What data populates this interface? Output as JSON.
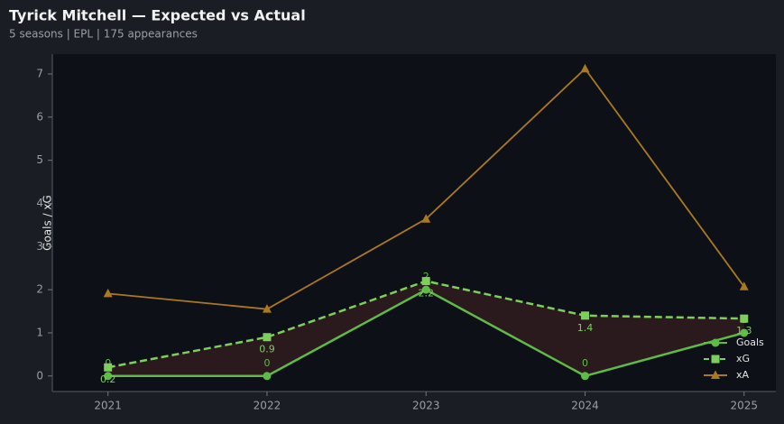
{
  "chart_data": {
    "type": "line",
    "title": "Tyrick Mitchell — Expected vs Actual",
    "subtitle": "5 seasons | EPL | 175 appearances",
    "y_label": "Goals / xG",
    "x": [
      2021,
      2022,
      2023,
      2024,
      2025
    ],
    "xlim": [
      2020.65,
      2025.2
    ],
    "xticks": [
      2021,
      2022,
      2023,
      2024,
      2025
    ],
    "ylim": [
      -0.36,
      7.46
    ],
    "yticks": [
      0,
      1,
      2,
      3,
      4,
      5,
      6,
      7
    ],
    "grid": false,
    "legend": "lower right",
    "series": [
      {
        "name": "Goals",
        "color": "#5dbb46",
        "marker": "circle",
        "linestyle": "solid",
        "values": [
          0,
          0,
          2,
          0,
          1
        ]
      },
      {
        "name": "xG",
        "color": "#7ccf5c",
        "marker": "square",
        "linestyle": "dashed",
        "values": [
          0.2,
          0.9,
          2.2,
          1.4,
          1.33
        ],
        "value_labels": [
          "0.2",
          "0.9",
          "2.2",
          "1.4",
          "1.3"
        ]
      },
      {
        "name": "xA",
        "color": "#a9791f",
        "marker": "triangle",
        "linestyle": "solid",
        "values": [
          1.91,
          1.55,
          3.64,
          7.12,
          2.07
        ]
      }
    ],
    "fill_between": {
      "color": "#2e1c1e"
    }
  }
}
